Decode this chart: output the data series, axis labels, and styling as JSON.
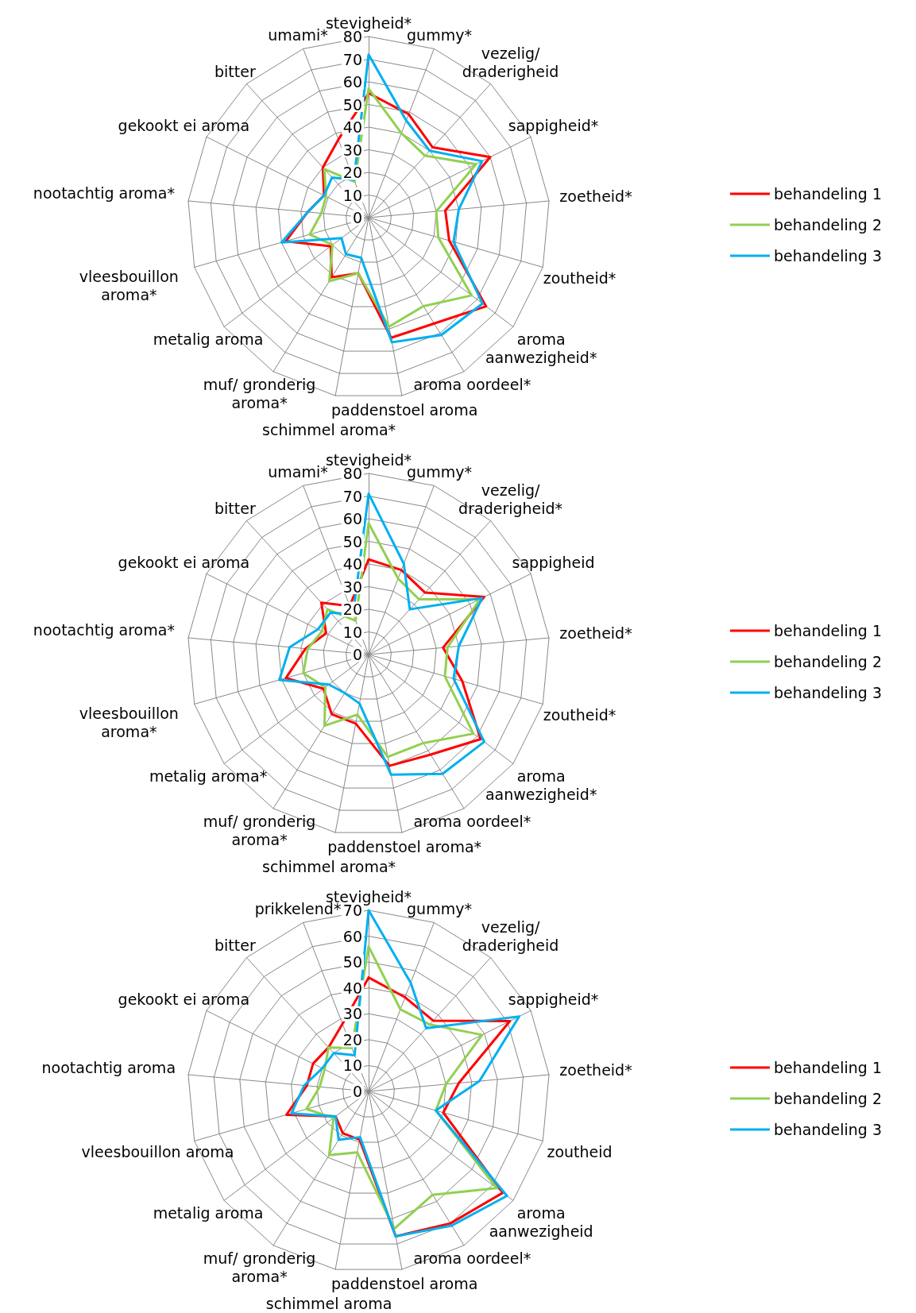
{
  "chart_data": [
    {
      "type": "radar",
      "categories": [
        "stevigheid*",
        "gummy*",
        "vezelig/\ndraderigheid",
        "sappigheid*",
        "zoetheid*",
        "zoutheid*",
        "aroma\naanwezigheid*",
        "aroma oordeel*",
        "paddenstoel aroma",
        "schimmel aroma*",
        "muf/ gronderig\naroma*",
        "metalig aroma",
        "vleesbouillon\naroma*",
        "nootachtig aroma*",
        "gekookt ei aroma",
        "bitter",
        "umami*"
      ],
      "ylim": [
        0,
        80
      ],
      "yticks": [
        0,
        10,
        20,
        30,
        40,
        50,
        60,
        70,
        80
      ],
      "grid": true,
      "legend": "right",
      "marker": "none",
      "line_style": "solid",
      "series": [
        {
          "name": "behandeling 1",
          "color": "#ff0000",
          "values": [
            55,
            49,
            42,
            60,
            34,
            37,
            65,
            55,
            54,
            25,
            31,
            21,
            38,
            27,
            22,
            30,
            37
          ]
        },
        {
          "name": "behandeling 2",
          "color": "#92d050",
          "values": [
            57,
            40,
            37,
            53,
            30,
            32,
            57,
            46,
            49,
            25,
            33,
            20,
            27,
            21,
            21,
            29,
            17
          ]
        },
        {
          "name": "behandeling 3",
          "color": "#00b0f0",
          "values": [
            72,
            46,
            40,
            56,
            40,
            39,
            63,
            61,
            56,
            18,
            19,
            15,
            40,
            27,
            22,
            24,
            18
          ]
        }
      ]
    },
    {
      "type": "radar",
      "categories": [
        "stevigheid*",
        "gummy*",
        "vezelig/\ndraderigheid*",
        "sappigheid",
        "zoetheid*",
        "zoutheid*",
        "aroma\naanwezigheid*",
        "aroma oordeel*",
        "paddenstoel aroma*",
        "schimmel aroma*",
        "muf/ gronderig\naroma*",
        "metalig aroma*",
        "vleesbouillon\naroma*",
        "nootachtig aroma*",
        "gekookt ei aroma",
        "bitter",
        "umami*"
      ],
      "ylim": [
        0,
        80
      ],
      "yticks": [
        0,
        10,
        20,
        30,
        40,
        50,
        60,
        70,
        80
      ],
      "grid": true,
      "legend": "right",
      "marker": "none",
      "line_style": "solid",
      "series": [
        {
          "name": "behandeling 1",
          "color": "#ff0000",
          "values": [
            42,
            40,
            37,
            57,
            33,
            43,
            62,
            52,
            50,
            31,
            31,
            25,
            38,
            28,
            21,
            31,
            23
          ]
        },
        {
          "name": "behandeling 2",
          "color": "#92d050",
          "values": [
            58,
            36,
            33,
            55,
            35,
            35,
            58,
            46,
            46,
            27,
            37,
            24,
            30,
            27,
            23,
            27,
            16
          ]
        },
        {
          "name": "behandeling 3",
          "color": "#00b0f0",
          "values": [
            71,
            43,
            27,
            56,
            40,
            39,
            64,
            62,
            54,
            22,
            20,
            22,
            41,
            35,
            25,
            25,
            19
          ]
        }
      ]
    },
    {
      "type": "radar",
      "categories": [
        "stevigheid*",
        "gummy*",
        "vezelig/\ndraderigheid",
        "sappigheid*",
        "zoetheid*",
        "zoutheid",
        "aroma\naanwezigheid",
        "aroma oordeel*",
        "paddenstoel aroma",
        "schimmel aroma",
        "muf/ gronderig\naroma*",
        "metalig aroma",
        "vleesbouillon aroma",
        "nootachtig aroma",
        "gekookt ei aroma",
        "bitter",
        "prikkelend*"
      ],
      "ylim": [
        0,
        70
      ],
      "yticks": [
        0,
        10,
        20,
        30,
        40,
        50,
        60,
        70
      ],
      "grid": true,
      "legend": "right",
      "marker": "none",
      "line_style": "solid",
      "series": [
        {
          "name": "behandeling 1",
          "color": "#ff0000",
          "values": [
            44,
            39,
            37,
            61,
            35,
            30,
            65,
            60,
            57,
            19,
            19,
            16,
            33,
            24,
            24,
            23,
            28
          ]
        },
        {
          "name": "behandeling 2",
          "color": "#92d050",
          "values": [
            56,
            34,
            35,
            49,
            30,
            27,
            62,
            47,
            54,
            24,
            29,
            17,
            25,
            19,
            19,
            23,
            18
          ]
        },
        {
          "name": "behandeling 3",
          "color": "#00b0f0",
          "values": [
            70,
            45,
            33,
            65,
            43,
            27,
            67,
            61,
            57,
            18,
            22,
            16,
            31,
            25,
            20,
            20,
            15
          ]
        }
      ]
    }
  ]
}
